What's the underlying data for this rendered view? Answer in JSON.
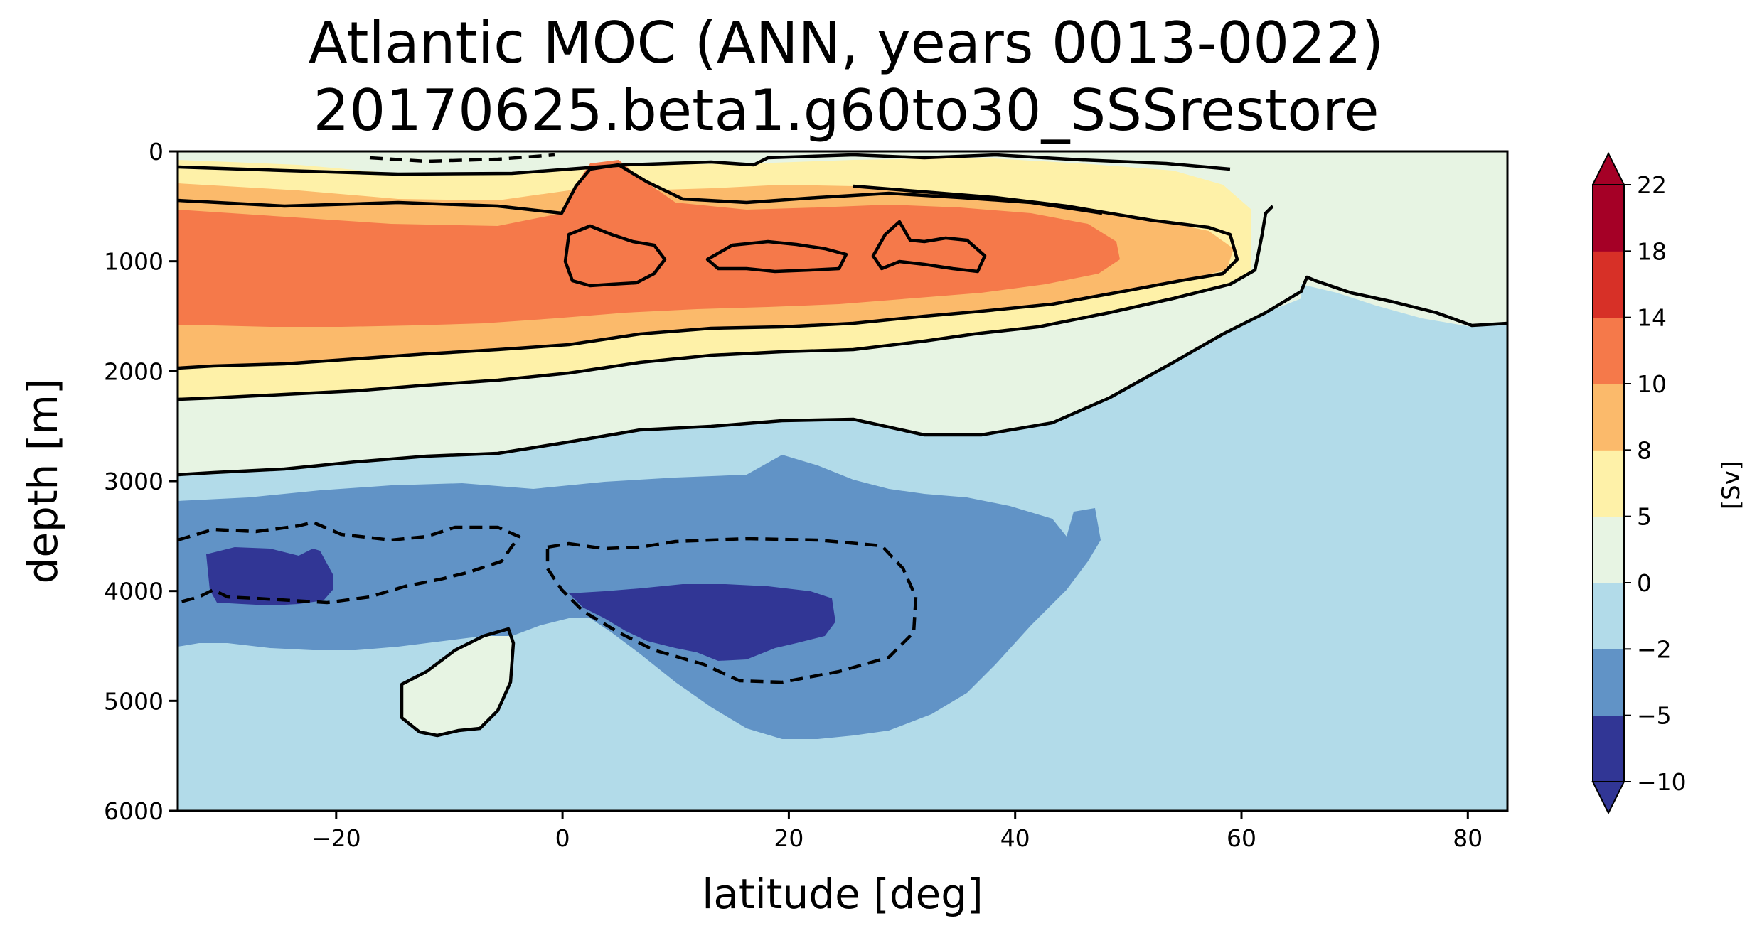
{
  "chart_data": {
    "type": "contour",
    "title": "Atlantic MOC (ANN, years 0013-0022)",
    "subtitle": "20170625.beta1.g60to30_SSSrestore",
    "xlabel": "latitude [deg]",
    "ylabel": "depth [m]",
    "xlim": [
      -34,
      83.5
    ],
    "ylim": [
      6000,
      0
    ],
    "x_ticks": [
      -20,
      0,
      20,
      40,
      60,
      80
    ],
    "x_tick_labels": [
      "−20",
      "0",
      "20",
      "40",
      "60",
      "80"
    ],
    "y_ticks": [
      0,
      1000,
      2000,
      3000,
      4000,
      5000,
      6000
    ],
    "y_tick_labels": [
      "0",
      "1000",
      "2000",
      "3000",
      "4000",
      "5000",
      "6000"
    ],
    "colorbar": {
      "label": "[Sv]",
      "extend": "both",
      "levels": [
        -10,
        -5,
        -2,
        0,
        5,
        8,
        10,
        14,
        18,
        22
      ],
      "level_labels": [
        "−10",
        "−5",
        "−2",
        "0",
        "5",
        "8",
        "10",
        "14",
        "18",
        "22"
      ],
      "colors": [
        "#313695",
        "#6193c6",
        "#b2dbe9",
        "#e7f4e3",
        "#fef1a8",
        "#fbba6b",
        "#f5794a",
        "#d73027",
        "#a50026"
      ],
      "under_color": "#313695",
      "over_color": "#a50026"
    },
    "contour_line_levels": [
      -5,
      0,
      5,
      8,
      10
    ],
    "negative_lines": "dashed",
    "max_value_sv": 12,
    "max_location": {
      "lat": 20,
      "depth": 1000
    },
    "min_value_sv": -7,
    "min_location": {
      "lat": 15,
      "depth": 4200
    }
  }
}
